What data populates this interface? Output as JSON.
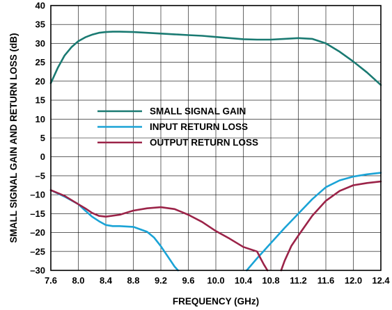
{
  "chart_data": {
    "type": "line",
    "title": "",
    "xlabel": "FREQUENCY (GHz)",
    "ylabel": "SMALL SIGNAL GAIN AND RETURN LOSS (dB)",
    "xlim": [
      7.6,
      12.4
    ],
    "ylim": [
      -30,
      40
    ],
    "x_ticks": [
      "7.6",
      "8.0",
      "8.4",
      "8.8",
      "9.2",
      "9.6",
      "10.0",
      "10.4",
      "10.8",
      "11.2",
      "11.6",
      "12.0",
      "12.4"
    ],
    "y_ticks": [
      "40",
      "35",
      "30",
      "25",
      "20",
      "15",
      "10",
      "5",
      "0",
      "–5",
      "–10",
      "–15",
      "–20",
      "–25",
      "–30"
    ],
    "grid": true,
    "legend_position": "center-left",
    "series": [
      {
        "name": "SMALL SIGNAL GAIN",
        "color": "#1a7a72",
        "x": [
          7.6,
          7.7,
          7.8,
          7.9,
          8.0,
          8.1,
          8.2,
          8.3,
          8.4,
          8.5,
          8.6,
          8.8,
          9.0,
          9.2,
          9.4,
          9.6,
          9.8,
          10.0,
          10.2,
          10.4,
          10.6,
          10.8,
          11.0,
          11.2,
          11.4,
          11.6,
          11.8,
          12.0,
          12.2,
          12.4
        ],
        "y": [
          19.5,
          23.5,
          26.8,
          29.0,
          30.6,
          31.6,
          32.3,
          32.8,
          33.0,
          33.1,
          33.1,
          33.0,
          32.8,
          32.6,
          32.4,
          32.2,
          32.0,
          31.7,
          31.4,
          31.1,
          31.0,
          31.0,
          31.2,
          31.4,
          31.2,
          30.0,
          27.8,
          25.2,
          22.3,
          19.0
        ]
      },
      {
        "name": "INPUT RETURN LOSS",
        "color": "#1aa3d6",
        "x": [
          7.6,
          7.8,
          8.0,
          8.1,
          8.2,
          8.3,
          8.4,
          8.5,
          8.6,
          8.8,
          9.0,
          9.1,
          9.2,
          9.3,
          9.4,
          9.45,
          10.45,
          10.6,
          10.8,
          11.0,
          11.2,
          11.4,
          11.6,
          11.8,
          12.0,
          12.2,
          12.4
        ],
        "y": [
          -8.8,
          -10.5,
          -12.5,
          -14.2,
          -15.8,
          -17.0,
          -18.0,
          -18.3,
          -18.3,
          -18.5,
          -19.8,
          -21.3,
          -23.6,
          -26.3,
          -29.0,
          -30.0,
          -30.0,
          -26.8,
          -22.8,
          -18.8,
          -15.0,
          -11.2,
          -8.0,
          -6.2,
          -5.2,
          -4.6,
          -4.2
        ]
      },
      {
        "name": "OUTPUT RETURN LOSS",
        "color": "#9b2348",
        "x": [
          7.6,
          7.8,
          8.0,
          8.1,
          8.2,
          8.3,
          8.4,
          8.6,
          8.8,
          9.0,
          9.2,
          9.4,
          9.6,
          9.8,
          10.0,
          10.2,
          10.4,
          10.6,
          10.65,
          10.7,
          10.75,
          10.95,
          11.0,
          11.1,
          11.2,
          11.4,
          11.6,
          11.8,
          12.0,
          12.2,
          12.4
        ],
        "y": [
          -8.8,
          -10.3,
          -12.5,
          -13.6,
          -14.8,
          -15.6,
          -15.8,
          -15.3,
          -14.2,
          -13.6,
          -13.3,
          -13.8,
          -15.3,
          -17.2,
          -19.6,
          -21.6,
          -23.8,
          -25.0,
          -26.8,
          -28.5,
          -30.0,
          -30.0,
          -27.5,
          -23.5,
          -20.8,
          -15.6,
          -11.6,
          -9.0,
          -7.5,
          -6.9,
          -6.5
        ]
      }
    ]
  }
}
